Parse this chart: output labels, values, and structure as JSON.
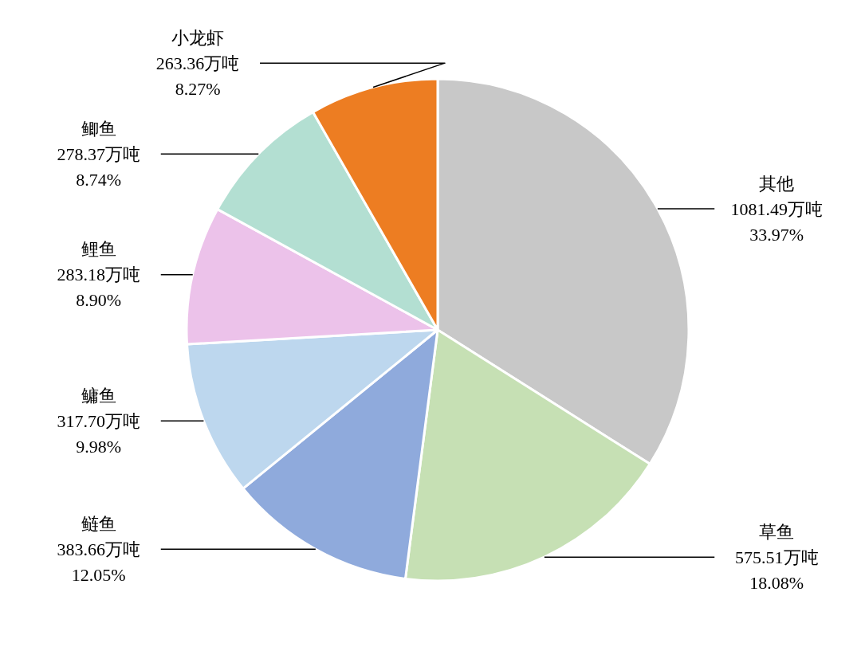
{
  "chart_data": {
    "type": "pie",
    "categories": [
      "其他",
      "草鱼",
      "鲢鱼",
      "鳙鱼",
      "鲤鱼",
      "鲫鱼",
      "小龙虾"
    ],
    "values": [
      1081.49,
      575.51,
      383.66,
      317.7,
      283.18,
      278.37,
      263.36
    ],
    "colors": [
      "#c8c8c8",
      "#c6e0b4",
      "#8faadc",
      "#bdd7ee",
      "#ecc2ea",
      "#b3dfd2",
      "#ed7d22"
    ],
    "value_labels": [
      "1081.49万吨\n33.97%",
      "575.51万吨\n18.08%",
      "383.66万吨\n12.05%",
      "317.70万吨\n9.98%",
      "283.18万吨\n8.90%",
      "278.37万吨\n8.74%",
      "263.36万吨\n8.27%"
    ]
  }
}
